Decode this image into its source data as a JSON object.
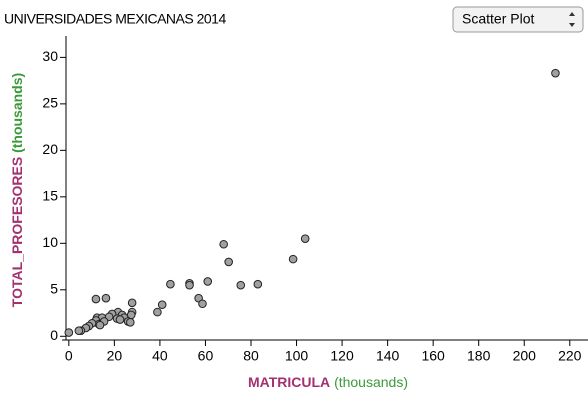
{
  "controls": {
    "plot_type": "Scatter Plot"
  },
  "chart_data": {
    "type": "scatter",
    "title": "UNIVERSIDADES MEXICANAS 2014",
    "xlabel": "MATRICULA",
    "xlabel_unit": "(thousands)",
    "ylabel": "TOTAL_PROFESORES",
    "ylabel_unit": "(thousands)",
    "xlim": [
      -3,
      228
    ],
    "ylim": [
      -0.4,
      32.3
    ],
    "xticks": [
      0,
      20,
      40,
      60,
      80,
      100,
      120,
      140,
      160,
      180,
      200,
      220
    ],
    "yticks": [
      0,
      5,
      10,
      15,
      20,
      25,
      30
    ],
    "point_color": "#a0a0a0",
    "name_color": "#a3306f",
    "unit_color": "#3a9a3a",
    "x": [
      213.7,
      103.8,
      68,
      70.2,
      98.5,
      61,
      83,
      75.5,
      44.6,
      53,
      53,
      57,
      58.7,
      41,
      38.9,
      11.9,
      16.3,
      27.8,
      27.8,
      27.4,
      21.6,
      19,
      23.4,
      12.4,
      14.6,
      17.7,
      21.2,
      24.3,
      11.9,
      13.2,
      15.5,
      22.5,
      26,
      27,
      10.2,
      8.8,
      13.7,
      7.5,
      5.3,
      4.4,
      0
    ],
    "y": [
      28.3,
      10.5,
      9.9,
      8.0,
      8.3,
      5.9,
      5.6,
      5.5,
      5.6,
      5.7,
      5.5,
      4.1,
      3.5,
      3.4,
      2.6,
      4.0,
      4.1,
      3.6,
      2.6,
      2.3,
      2.6,
      2.4,
      2.3,
      2.0,
      2.0,
      2.1,
      1.9,
      2.0,
      1.7,
      1.3,
      1.6,
      1.8,
      1.6,
      1.5,
      1.4,
      1.1,
      1.2,
      0.9,
      0.6,
      0.6,
      0.4
    ]
  }
}
